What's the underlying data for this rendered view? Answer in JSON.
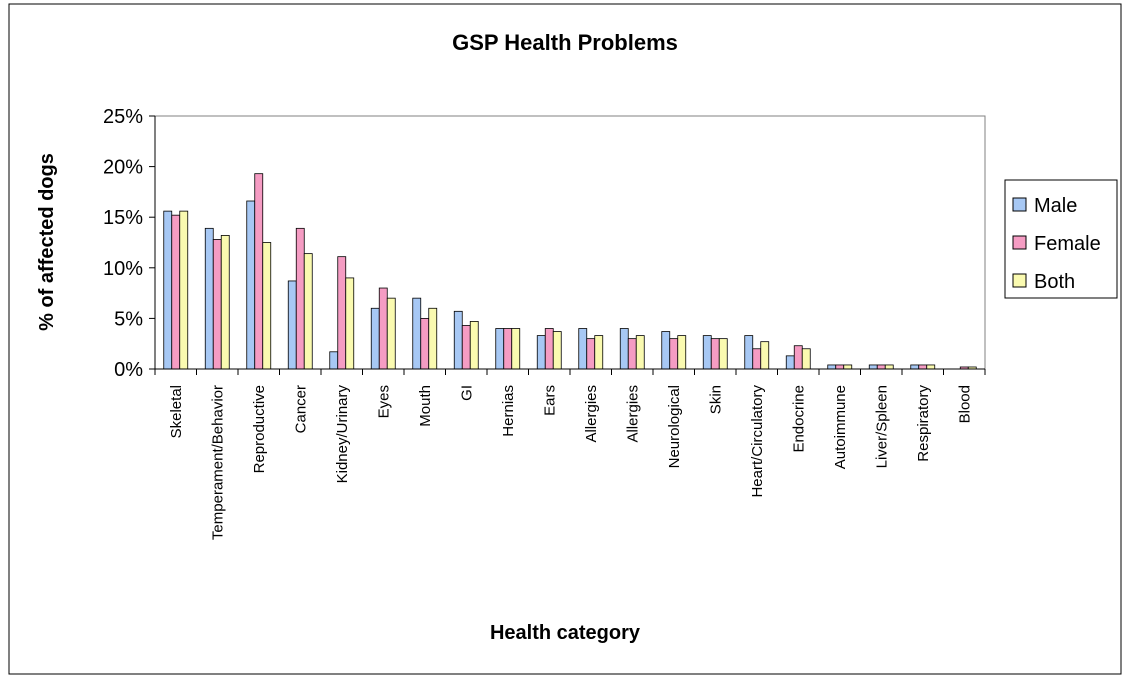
{
  "chart_data": {
    "type": "bar",
    "title": "GSP Health Problems",
    "xlabel": "Health category",
    "ylabel": "% of affected dogs",
    "ylim": [
      0,
      25
    ],
    "yticks": [
      "0%",
      "5%",
      "10%",
      "15%",
      "20%",
      "25%"
    ],
    "grid": false,
    "legend_position": "right",
    "categories": [
      "Skeletal",
      "Temperament/Behavior",
      "Reproductive",
      "Cancer",
      "Kidney/Urinary",
      "Eyes",
      "Mouth",
      "GI",
      "Hernias",
      "Ears",
      "Allergies",
      "Allergies",
      "Neurological",
      "Skin",
      "Heart/Circulatory",
      "Endocrine",
      "Autoimmune",
      "Liver/Spleen",
      "Respiratory",
      "Blood"
    ],
    "series": [
      {
        "name": "Male",
        "color": "#a7c8f4",
        "values": [
          15.6,
          13.9,
          16.6,
          8.7,
          1.7,
          6.0,
          7.0,
          5.7,
          4.0,
          3.3,
          4.0,
          4.0,
          3.7,
          3.3,
          3.3,
          1.3,
          0.4,
          0.4,
          0.4,
          0.0
        ]
      },
      {
        "name": "Female",
        "color": "#f59cc3",
        "values": [
          15.2,
          12.8,
          19.3,
          13.9,
          11.1,
          8.0,
          5.0,
          4.3,
          4.0,
          4.0,
          3.0,
          3.0,
          3.0,
          3.0,
          2.0,
          2.3,
          0.4,
          0.4,
          0.4,
          0.2
        ]
      },
      {
        "name": "Both",
        "color": "#fafab0",
        "values": [
          15.6,
          13.2,
          12.5,
          11.4,
          9.0,
          7.0,
          6.0,
          4.7,
          4.0,
          3.7,
          3.3,
          3.3,
          3.3,
          3.0,
          2.7,
          2.0,
          0.4,
          0.4,
          0.4,
          0.2
        ]
      }
    ]
  }
}
